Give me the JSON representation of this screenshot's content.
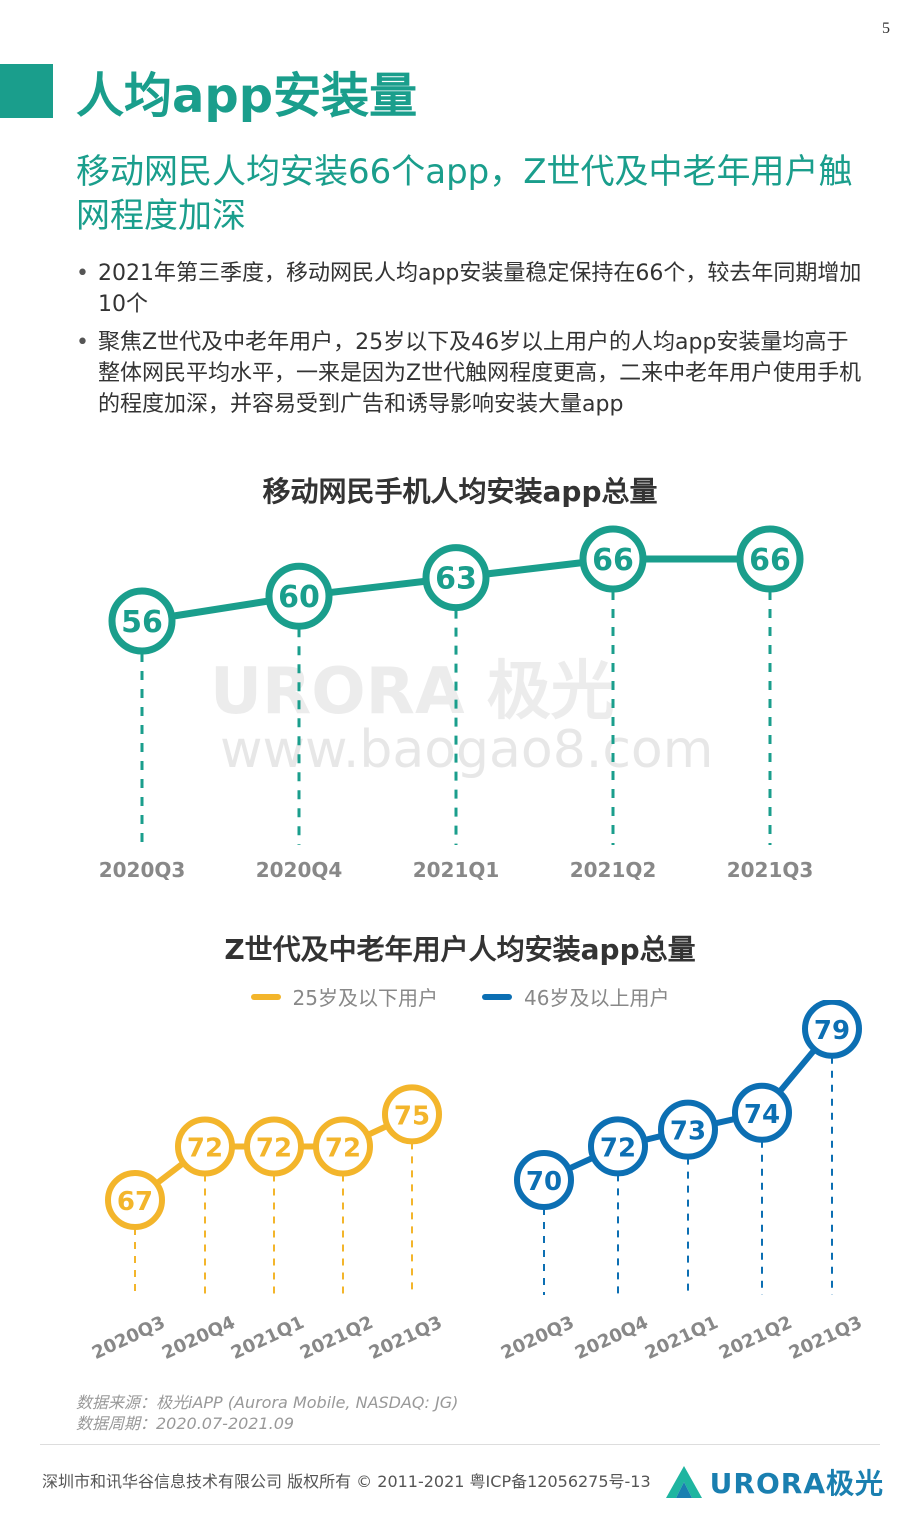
{
  "page_number": "5",
  "title": "人均app安装量",
  "subtitle": "移动网民人均安装66个app，Z世代及中老年用户触网程度加深",
  "bullets": [
    "2021年第三季度，移动网民人均app安装量稳定保持在66个，较去年同期增加10个",
    "聚焦Z世代及中老年用户，25岁以下及46岁以上用户的人均app安装量均高于整体网民平均水平，一来是因为Z世代触网程度更高，二来中老年用户使用手机的程度加深，并容易受到广告和诱导影响安装大量app"
  ],
  "watermark": {
    "brand": "URORA 极光",
    "url": "www.baogao8.com"
  },
  "colors": {
    "teal": "#1a9e8c",
    "orange": "#f3b52b",
    "blue": "#0c6fb3"
  },
  "chart_data": [
    {
      "type": "line",
      "title": "移动网民手机人均安装app总量",
      "categories": [
        "2020Q3",
        "2020Q4",
        "2021Q1",
        "2021Q2",
        "2021Q3"
      ],
      "values": [
        56,
        60,
        63,
        66,
        66
      ],
      "color": "#1a9e8c"
    },
    {
      "type": "line",
      "title": "Z世代及中老年用户人均安装app总量",
      "legend_position": "top",
      "series": [
        {
          "name": "25岁及以下用户",
          "color": "#f3b52b",
          "categories": [
            "2020Q3",
            "2020Q4",
            "2021Q1",
            "2021Q2",
            "2021Q3"
          ],
          "values": [
            67,
            72,
            72,
            72,
            75
          ]
        },
        {
          "name": "46岁及以上用户",
          "color": "#0c6fb3",
          "categories": [
            "2020Q3",
            "2020Q4",
            "2021Q1",
            "2021Q2",
            "2021Q3"
          ],
          "values": [
            70,
            72,
            73,
            74,
            79
          ]
        }
      ]
    }
  ],
  "source": {
    "line1": "数据来源：极光iAPP (Aurora Mobile, NASDAQ: JG)",
    "line2": "数据周期：2020.07-2021.09"
  },
  "footer": {
    "copyright": "深圳市和讯华谷信息技术有限公司 版权所有 © 2011-2021 粤ICP备12056275号-13",
    "logo_text": "URORA极光"
  }
}
